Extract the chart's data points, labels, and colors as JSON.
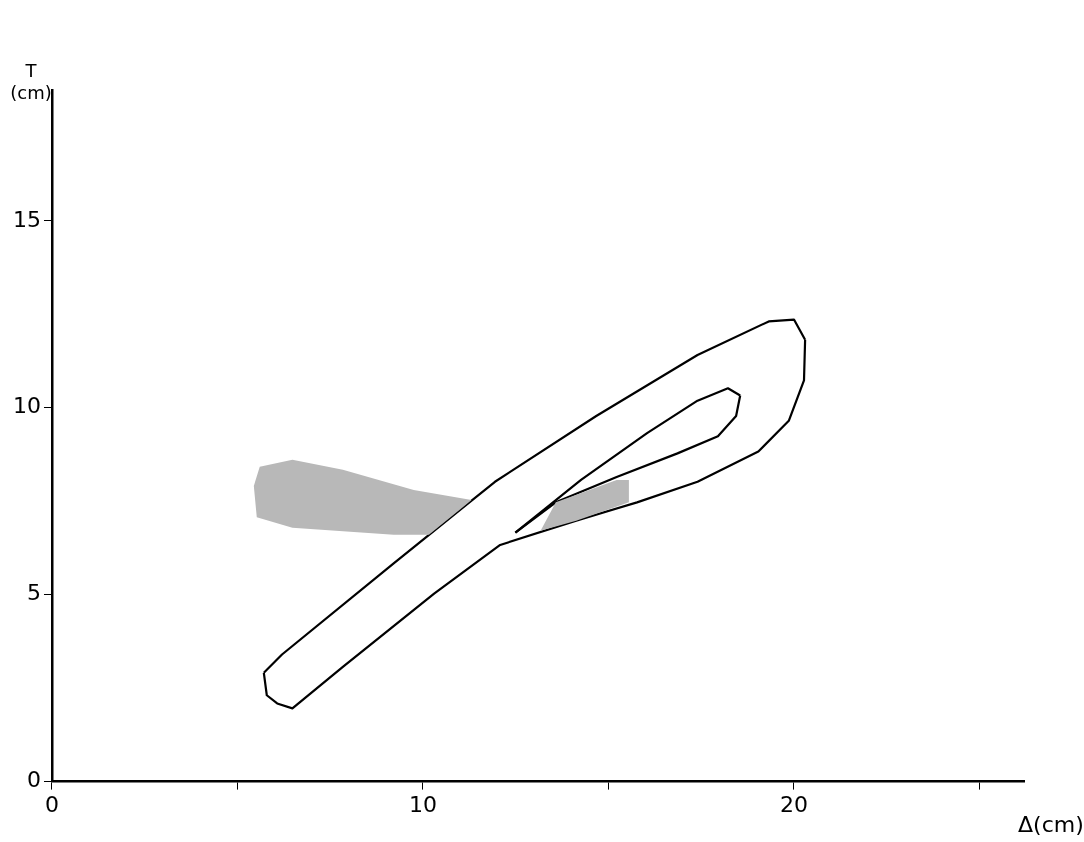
{
  "chart_data": {
    "type": "line",
    "xlabel": "Δ(cm)",
    "ylabel": "T (cm)",
    "xlim": [
      0,
      26.2
    ],
    "ylim": [
      0,
      18.5
    ],
    "xticks": [
      0,
      {
        "value": 5,
        "label": null
      },
      10,
      {
        "value": 15,
        "label": null
      },
      20,
      {
        "value": 25,
        "label": null
      }
    ],
    "yticks": [
      0,
      5,
      10,
      15
    ],
    "grid": false,
    "legend": false,
    "marker": "none",
    "line_style": "solid",
    "series": [
      {
        "type": "area",
        "color": "#b8b8b8",
        "x": [
          5.44,
          5.6,
          6.48,
          7.84,
          9.75,
          11.31,
          10.16,
          9.21,
          6.48,
          5.52,
          5.44
        ],
        "values": [
          7.91,
          8.42,
          8.61,
          8.34,
          7.8,
          7.53,
          6.6,
          6.6,
          6.79,
          7.07,
          7.91
        ]
      },
      {
        "type": "area",
        "color": "#b8b8b8",
        "x": [
          13.58,
          15.22,
          15.55,
          15.55,
          14.13,
          13.17,
          13.58
        ],
        "values": [
          7.47,
          8.07,
          8.07,
          7.47,
          6.98,
          6.71,
          7.47
        ]
      },
      {
        "color": "#000000",
        "x": [
          5.71,
          6.2,
          9.21,
          11.94,
          14.67,
          17.4,
          19.32,
          20.0,
          20.3
        ],
        "values": [
          2.91,
          3.4,
          5.84,
          8.02,
          9.78,
          11.41,
          12.31,
          12.36,
          11.82
        ]
      },
      {
        "color": "#000000",
        "x": [
          5.71,
          5.79,
          6.07,
          6.48,
          7.84,
          10.3,
          12.08,
          14.13,
          15.77,
          17.4,
          19.04,
          19.86,
          20.27,
          20.3
        ],
        "values": [
          2.91,
          2.31,
          2.09,
          1.96,
          3.07,
          5.03,
          6.33,
          6.98,
          7.47,
          8.02,
          8.83,
          9.65,
          10.73,
          11.82
        ]
      },
      {
        "color": "#000000",
        "x": [
          12.49,
          14.26,
          16.04,
          17.4,
          18.22,
          18.55
        ],
        "values": [
          6.66,
          8.07,
          9.32,
          10.19,
          10.52,
          10.33
        ]
      },
      {
        "color": "#000000",
        "x": [
          12.49,
          13.58,
          15.22,
          16.86,
          17.95,
          18.44,
          18.55
        ],
        "values": [
          6.66,
          7.47,
          8.15,
          8.78,
          9.24,
          9.78,
          10.33
        ]
      }
    ]
  }
}
